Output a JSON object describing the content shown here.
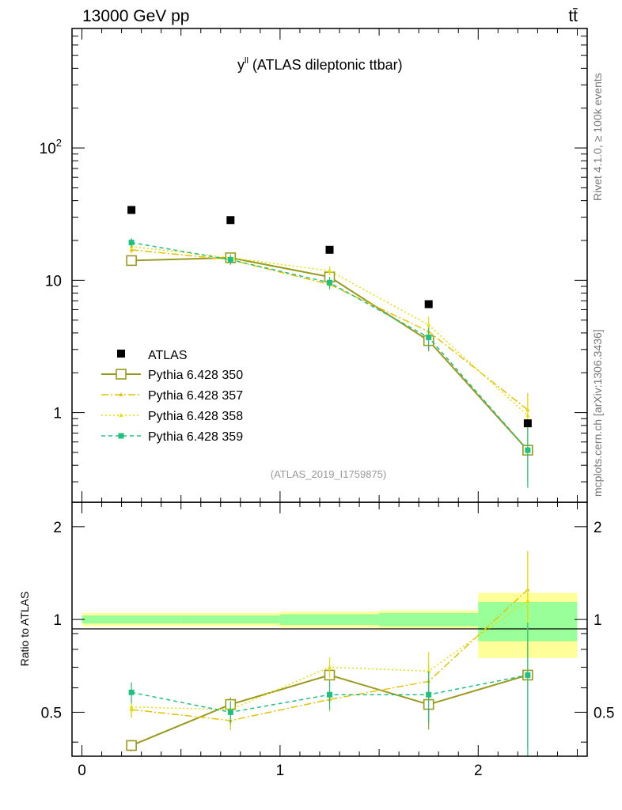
{
  "header": {
    "energy": "13000 GeV pp",
    "process": "tt̄"
  },
  "side_text": {
    "rivet": "Rivet 4.1.0, ≥ 100k events",
    "site": "mcplots.cern.ch [arXiv:1306.3436]"
  },
  "chart_data": {
    "type": "scatter",
    "title_var": "y",
    "title_sup": "ll",
    "title_rest": " (ATLAS dileptonic ttbar)",
    "analysis_id": "(ATLAS_2019_I1759875)",
    "xlabel": "",
    "ylabel_ratio": "Ratio to ATLAS",
    "xlim": [
      -0.05,
      2.55
    ],
    "ylim_main": [
      0.21,
      800
    ],
    "ylim_ratio": [
      0.36,
      2.4
    ],
    "y_scale": "log",
    "x_ticks": [
      {
        "v": 0,
        "label": "0"
      },
      {
        "v": 1,
        "label": "1"
      },
      {
        "v": 2,
        "label": "2"
      }
    ],
    "y_ticks_main": [
      {
        "v": 1,
        "label": "1"
      },
      {
        "v": 10,
        "label": "10"
      },
      {
        "v": 100,
        "label_base": "10",
        "label_exp": "2"
      }
    ],
    "y_ticks_ratio": [
      {
        "v": 0.5,
        "label": "0.5"
      },
      {
        "v": 1,
        "label": "1"
      },
      {
        "v": 2,
        "label": "2"
      }
    ],
    "bins": [
      [
        0,
        0.5
      ],
      [
        0.5,
        1.0
      ],
      [
        1.0,
        1.5
      ],
      [
        1.5,
        2.0
      ],
      [
        2.0,
        2.5
      ]
    ],
    "x": [
      0.25,
      0.75,
      1.25,
      1.75,
      2.25
    ],
    "data": {
      "name": "ATLAS",
      "values": [
        34.0,
        28.5,
        17.0,
        6.6,
        0.83
      ]
    },
    "band_green": [
      [
        0.97,
        1.03
      ],
      [
        0.97,
        1.03
      ],
      [
        0.96,
        1.04
      ],
      [
        0.95,
        1.05
      ],
      [
        0.85,
        1.14
      ]
    ],
    "band_yellow": [
      [
        0.95,
        1.05
      ],
      [
        0.95,
        1.05
      ],
      [
        0.94,
        1.06
      ],
      [
        0.93,
        1.07
      ],
      [
        0.75,
        1.22
      ]
    ],
    "series": [
      {
        "name": "Pythia 6.428 350",
        "color": "#9a9a1e",
        "dash": "",
        "marker": "open-square",
        "width": 2,
        "values": [
          14.1,
          14.8,
          10.6,
          3.5,
          0.52
        ],
        "err": [
          0.6,
          0.8,
          0.9,
          0.6,
          0.22
        ],
        "ratio": [
          0.39,
          0.53,
          0.66,
          0.53,
          0.66
        ]
      },
      {
        "name": "Pythia 6.428 357",
        "color": "#e6c200",
        "dash": "9,3,2,3",
        "marker": "tri",
        "width": 1.5,
        "values": [
          17.0,
          14.3,
          9.3,
          4.1,
          1.05
        ],
        "err": [
          1.0,
          1.0,
          0.8,
          0.6,
          0.35
        ],
        "ratio": [
          0.51,
          0.47,
          0.55,
          0.63,
          1.25
        ]
      },
      {
        "name": "Pythia 6.428 358",
        "color": "#e6e000",
        "dash": "2,3",
        "marker": "tri",
        "width": 1.5,
        "values": [
          18.0,
          14.8,
          11.8,
          4.6,
          0.95
        ],
        "err": [
          1.0,
          1.0,
          0.9,
          0.7,
          0.4
        ],
        "ratio": [
          0.52,
          0.51,
          0.7,
          0.68,
          1.15
        ]
      },
      {
        "name": "Pythia 6.428 359",
        "color": "#20c080",
        "dash": "5,4",
        "marker": "filled-square",
        "width": 1.5,
        "values": [
          19.3,
          14.3,
          9.6,
          3.7,
          0.52
        ],
        "err": [
          1.5,
          1.2,
          1.0,
          0.7,
          0.25
        ],
        "ratio": [
          0.58,
          0.5,
          0.57,
          0.57,
          0.66
        ]
      }
    ]
  }
}
